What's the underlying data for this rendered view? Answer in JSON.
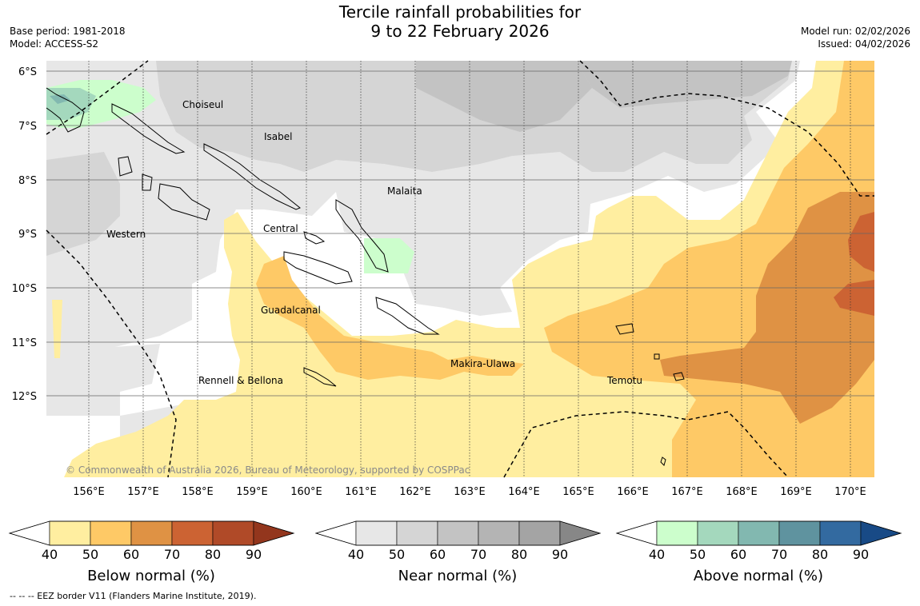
{
  "header": {
    "title_line1": "Tercile rainfall probabilities for",
    "title_line2": "9 to 22 February 2026",
    "base_period": "Base period: 1981-2018",
    "model": "Model: ACCESS-S2",
    "model_run": "Model run: 02/02/2026",
    "issued": "Issued: 04/02/2026"
  },
  "map": {
    "lat_labels": [
      "6°S",
      "7°S",
      "8°S",
      "9°S",
      "10°S",
      "11°S",
      "12°S"
    ],
    "lon_labels": [
      "156°E",
      "157°E",
      "158°E",
      "159°E",
      "160°E",
      "161°E",
      "162°E",
      "163°E",
      "164°E",
      "165°E",
      "166°E",
      "167°E",
      "168°E",
      "169°E",
      "170°E"
    ],
    "provinces": [
      "Choiseul",
      "Isabel",
      "Malaita",
      "Western",
      "Central",
      "Guadalcanal",
      "Makira-Ulawa",
      "Rennell & Bellona",
      "Temotu"
    ],
    "copyright": "© Commonwealth of Australia 2026, Bureau of Meteorology, supported by COSPPac"
  },
  "legends": [
    {
      "label": "Below normal (%)",
      "ticks": [
        "40",
        "50",
        "60",
        "70",
        "80",
        "90"
      ],
      "colors": [
        "#ffffff",
        "#ffeea0",
        "#fec966",
        "#df9244",
        "#cc6333",
        "#b04a28",
        "#93361d"
      ]
    },
    {
      "label": "Near normal (%)",
      "ticks": [
        "40",
        "50",
        "60",
        "70",
        "80",
        "90"
      ],
      "colors": [
        "#ffffff",
        "#e7e7e7",
        "#d5d5d5",
        "#c3c3c3",
        "#b4b4b4",
        "#a4a4a4",
        "#878787"
      ]
    },
    {
      "label": "Above normal (%)",
      "ticks": [
        "40",
        "50",
        "60",
        "70",
        "80",
        "90"
      ],
      "colors": [
        "#ffffff",
        "#ccfecc",
        "#a4d8bd",
        "#82b8b0",
        "#5f939f",
        "#336aa0",
        "#184a86"
      ]
    }
  ],
  "footnote": "--  --  -- EEZ border V11 (Flanders Marine Institute, 2019)."
}
